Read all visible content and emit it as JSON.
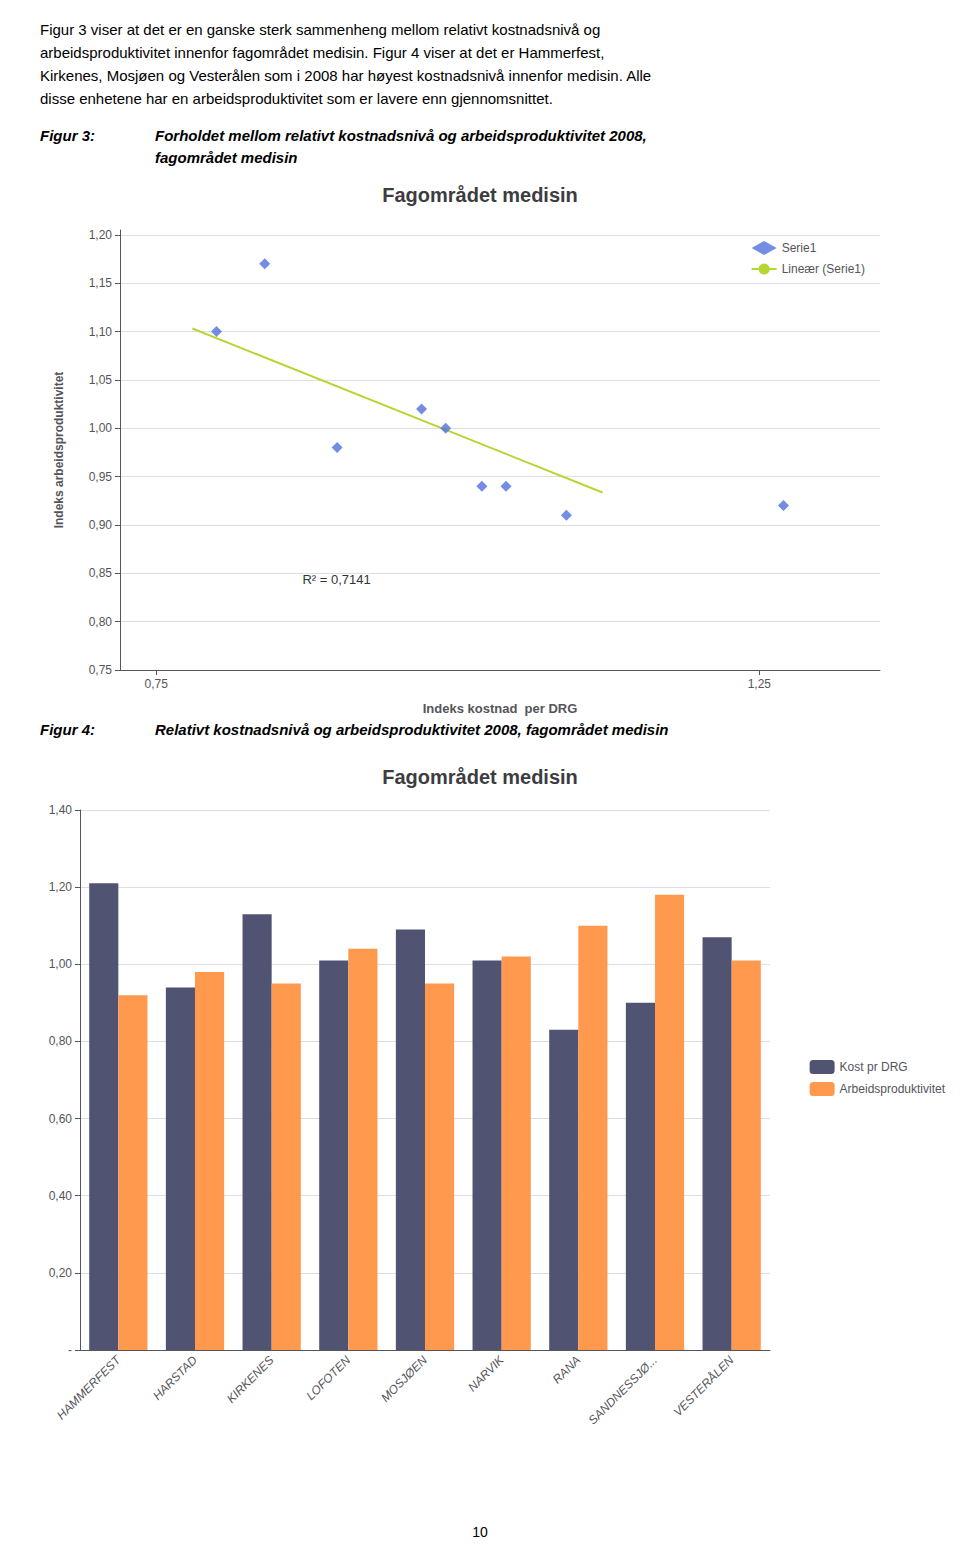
{
  "page_text": [
    "Figur 3 viser at det er en ganske sterk sammenheng mellom relativt kostnadsnivå og",
    "arbeidsproduktivitet innenfor fagområdet medisin. Figur 4 viser at det er Hammerfest,",
    "Kirkenes, Mosjøen og Vesterålen som i 2008 har høyest kostnadsnivå innenfor medisin. Alle",
    "disse enhetene har en arbeidsproduktivitet som er lavere enn gjennomsnittet."
  ],
  "page_number": "10",
  "chart_data": [
    {
      "type": "scatter",
      "caption_label": "Figur 3:",
      "caption": [
        "Forholdet mellom relativt kostnadsnivå og arbeidsproduktivitet 2008,",
        "fagområdet medisin"
      ],
      "title": "Fagområdet medisin",
      "xlabel": "Indeks kostnad  per DRG",
      "ylabel": "Indeks arbeidsproduktivitet",
      "annotations": [
        "R² = 0,7141"
      ],
      "series": [
        {
          "name": "Serie1",
          "type": "scatter",
          "marker": "diamond",
          "x": [
            0.8,
            0.84,
            0.9,
            0.97,
            0.99,
            1.02,
            1.04,
            1.09,
            1.27
          ],
          "values": [
            1.1,
            1.17,
            0.98,
            1.02,
            1.0,
            0.94,
            0.94,
            0.91,
            0.92
          ]
        },
        {
          "name": "Lineær (Serie1)",
          "type": "line",
          "x": [
            0.78,
            1.12
          ],
          "values": [
            1.1031,
            0.9335
          ]
        }
      ],
      "xlim": [
        0.72,
        1.35
      ],
      "xticks": [
        {
          "value": 0.75,
          "label": "0,75"
        },
        {
          "value": 1.25,
          "label": "1,25"
        }
      ],
      "ylim": [
        0.75,
        1.205
      ],
      "yticks": [
        {
          "value": 0.75,
          "label": "0,75"
        },
        {
          "value": 0.8,
          "label": "0,80"
        },
        {
          "value": 0.85,
          "label": "0,85"
        },
        {
          "value": 0.9,
          "label": "0,90"
        },
        {
          "value": 0.95,
          "label": "0,95"
        },
        {
          "value": 1.0,
          "label": "1,00"
        },
        {
          "value": 1.05,
          "label": "1,05"
        },
        {
          "value": 1.1,
          "label": "1,10"
        },
        {
          "value": 1.15,
          "label": "1,15"
        },
        {
          "value": 1.2,
          "label": "1,20"
        }
      ],
      "grid": true,
      "legend": "upper right"
    },
    {
      "type": "bar",
      "caption_label": "Figur 4:",
      "caption": [
        "Relativt kostnadsnivå og arbeidsproduktivitet 2008, fagområdet medisin"
      ],
      "title": "Fagområdet medisin",
      "categories": [
        "HAMMERFEST",
        "HARSTAD",
        "KIRKENES",
        "LOFOTEN",
        "MOSJØEN",
        "NARVIK",
        "RANA",
        "SANDNESSJØ...",
        "VESTERÅLEN"
      ],
      "series": [
        {
          "name": "Kost pr DRG",
          "values": [
            1.21,
            0.94,
            1.13,
            1.01,
            1.09,
            1.01,
            0.83,
            0.9,
            1.07
          ]
        },
        {
          "name": "Arbeidsproduktivitet",
          "values": [
            0.92,
            0.98,
            0.95,
            1.04,
            0.95,
            1.02,
            1.1,
            1.18,
            1.01
          ]
        }
      ],
      "ylim": [
        0.0,
        1.4
      ],
      "yticks": [
        {
          "value": 0.0,
          "label": "-"
        },
        {
          "value": 0.2,
          "label": "0,20"
        },
        {
          "value": 0.4,
          "label": "0,40"
        },
        {
          "value": 0.6,
          "label": "0,60"
        },
        {
          "value": 0.8,
          "label": "0,80"
        },
        {
          "value": 1.0,
          "label": "1,00"
        },
        {
          "value": 1.2,
          "label": "1,20"
        },
        {
          "value": 1.4,
          "label": "1,40"
        }
      ],
      "grid": true,
      "legend": "right"
    }
  ]
}
